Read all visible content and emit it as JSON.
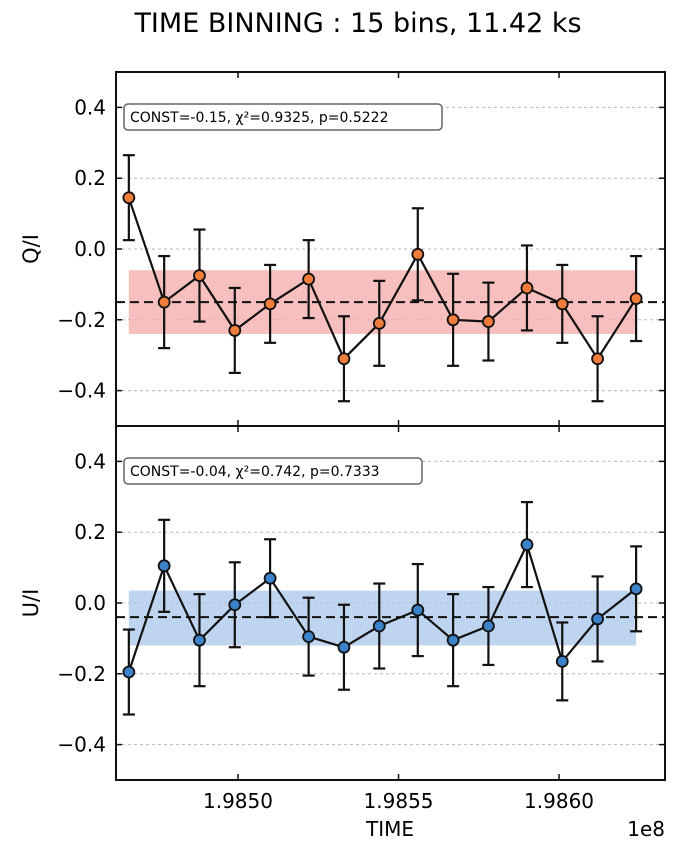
{
  "figure": {
    "title": "TIME BINNING : 15 bins, 11.42 ks"
  },
  "chart_data": [
    {
      "type": "scatter",
      "ylabel": "Q/I",
      "xlabel": "",
      "xlim": [
        1.98462,
        1.98633
      ],
      "ylim": [
        -0.5,
        0.5
      ],
      "yticks": [
        0.4,
        0.2,
        0.0,
        -0.2,
        -0.4
      ],
      "ytick_labels": [
        "0.4",
        "0.2",
        "0.0",
        "−0.2",
        "−0.4"
      ],
      "grid": "horizontal dashed",
      "x_scale_multiplier": "1e8",
      "const": -0.15,
      "band": [
        -0.24,
        -0.06
      ],
      "annotation": "CONST=-0.15, χ²=0.9325, p=0.5222",
      "marker_color": "#f07d3c",
      "band_color": "#f4aaa8",
      "series": [
        {
          "x": [
            1.98466,
            1.98477,
            1.98488,
            1.98499,
            1.9851,
            1.98522,
            1.98533,
            1.98544,
            1.98556,
            1.98567,
            1.98578,
            1.9859,
            1.98601,
            1.98612,
            1.98624
          ],
          "y": [
            0.145,
            -0.15,
            -0.075,
            -0.23,
            -0.155,
            -0.085,
            -0.31,
            -0.21,
            -0.015,
            -0.2,
            -0.205,
            -0.11,
            -0.155,
            -0.31,
            -0.14
          ],
          "err": [
            0.12,
            0.13,
            0.13,
            0.12,
            0.11,
            0.11,
            0.12,
            0.12,
            0.13,
            0.13,
            0.11,
            0.12,
            0.11,
            0.12,
            0.12
          ]
        }
      ]
    },
    {
      "type": "scatter",
      "ylabel": "U/I",
      "xlabel": "TIME",
      "xlim": [
        1.98462,
        1.98633
      ],
      "ylim": [
        -0.5,
        0.5
      ],
      "yticks": [
        0.4,
        0.2,
        0.0,
        -0.2,
        -0.4
      ],
      "ytick_labels": [
        "0.4",
        "0.2",
        "0.0",
        "−0.2",
        "−0.4"
      ],
      "xticks": [
        1.985,
        1.9855,
        1.986
      ],
      "xtick_labels": [
        "1.9850",
        "1.9855",
        "1.9860"
      ],
      "grid": "horizontal dashed",
      "x_scale_multiplier": "1e8",
      "const": -0.04,
      "band": [
        -0.12,
        0.035
      ],
      "annotation": "CONST=-0.04, χ²=0.742, p=0.7333",
      "marker_color": "#3c82c8",
      "band_color": "#a9c6ea",
      "series": [
        {
          "x": [
            1.98466,
            1.98477,
            1.98488,
            1.98499,
            1.9851,
            1.98522,
            1.98533,
            1.98544,
            1.98556,
            1.98567,
            1.98578,
            1.9859,
            1.98601,
            1.98612,
            1.98624
          ],
          "y": [
            -0.195,
            0.105,
            -0.105,
            -0.005,
            0.07,
            -0.095,
            -0.125,
            -0.065,
            -0.02,
            -0.105,
            -0.065,
            0.165,
            -0.165,
            -0.045,
            0.04
          ],
          "err": [
            0.12,
            0.13,
            0.13,
            0.12,
            0.11,
            0.11,
            0.12,
            0.12,
            0.13,
            0.13,
            0.11,
            0.12,
            0.11,
            0.12,
            0.12
          ]
        }
      ]
    }
  ]
}
